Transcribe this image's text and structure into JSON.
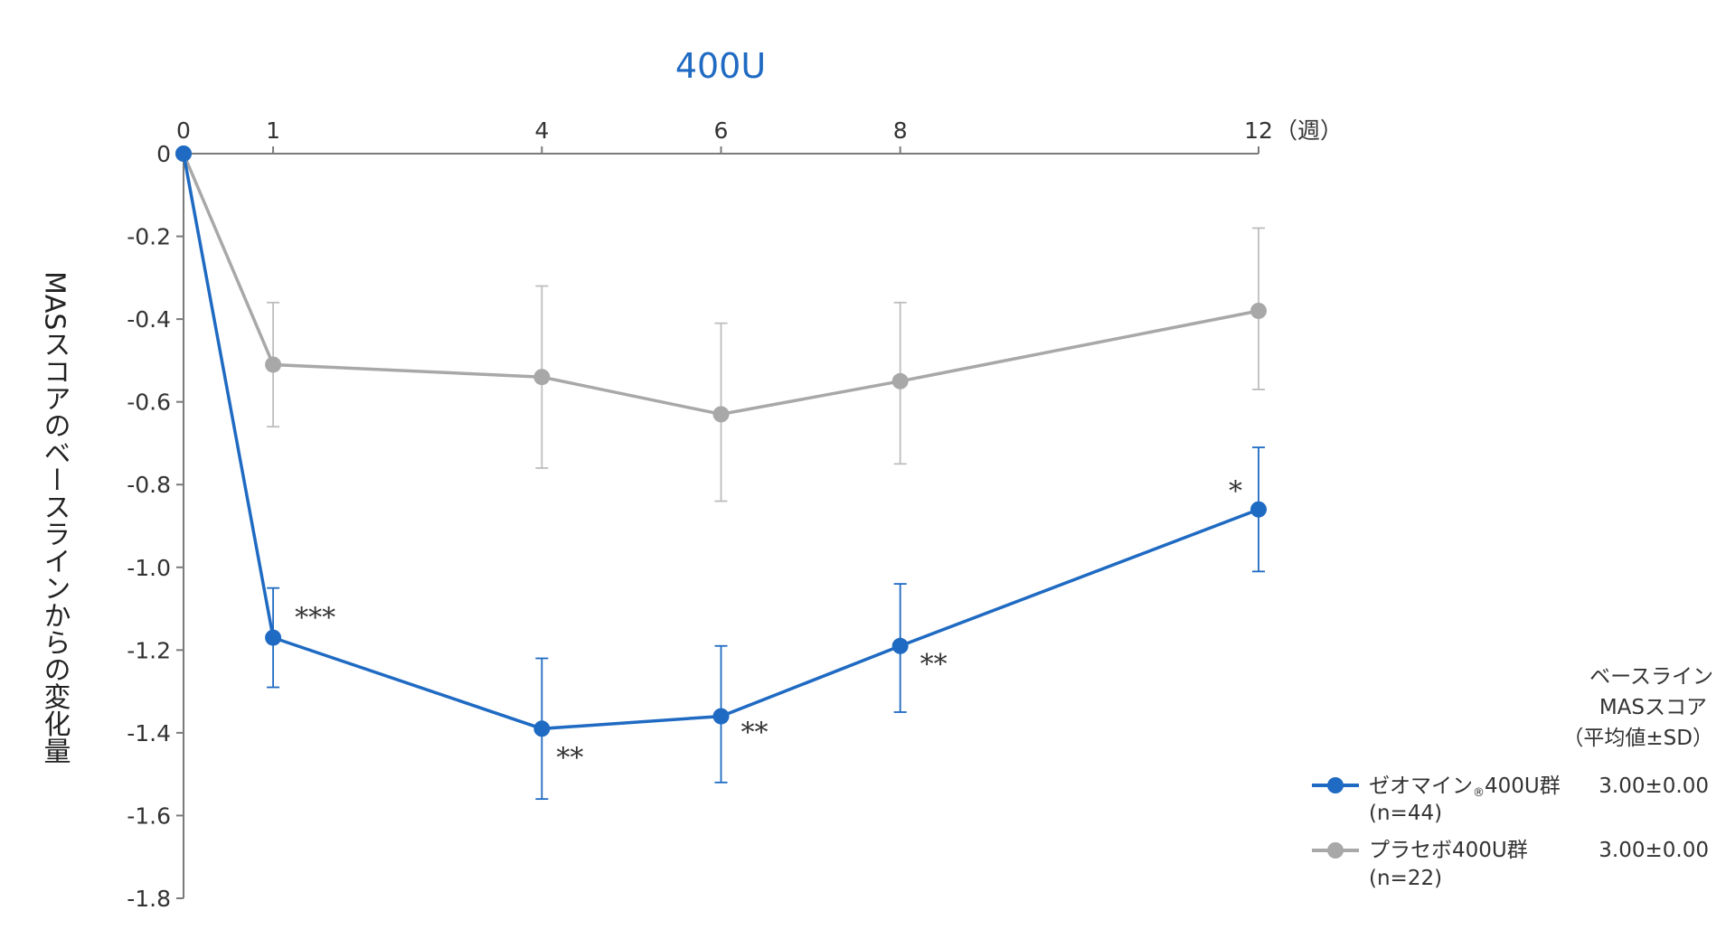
{
  "chart_data": {
    "type": "line",
    "title": "400U",
    "ylabel": "MASスコアのベースラインからの変化量",
    "x_unit": "（週）",
    "x_ticks": [
      0,
      1,
      4,
      6,
      8,
      12
    ],
    "y_ticks": [
      0,
      -0.2,
      -0.4,
      -0.6,
      -0.8,
      -1.0,
      -1.2,
      -1.4,
      -1.6,
      -1.8
    ],
    "y_tick_labels": [
      "0",
      "-0.2",
      "-0.4",
      "-0.6",
      "-0.8",
      "-1.0",
      "-1.2",
      "-1.4",
      "-1.6",
      "-1.8"
    ],
    "xlim": [
      0,
      12
    ],
    "ylim": [
      -1.8,
      0
    ],
    "grid": false,
    "legend_header": [
      "ベースライン",
      "MASスコア",
      "（平均値±SD）"
    ],
    "series": [
      {
        "name": "ゼオマイン®400U群",
        "legend_label": "ゼオマイン",
        "legend_label_mark": "®",
        "legend_label_rest": "400U群",
        "n_label": "(n=44)",
        "baseline_mas": "3.00±0.00",
        "color": "#1f6ac2",
        "points": [
          {
            "x": 0,
            "y": 0,
            "err_low": 0,
            "err_high": 0,
            "sig": ""
          },
          {
            "x": 1,
            "y": -1.17,
            "err_low": -1.29,
            "err_high": -1.05,
            "sig": "***"
          },
          {
            "x": 4,
            "y": -1.39,
            "err_low": -1.56,
            "err_high": -1.22,
            "sig": "**"
          },
          {
            "x": 6,
            "y": -1.36,
            "err_low": -1.52,
            "err_high": -1.19,
            "sig": "**"
          },
          {
            "x": 8,
            "y": -1.19,
            "err_low": -1.35,
            "err_high": -1.04,
            "sig": "**"
          },
          {
            "x": 12,
            "y": -0.86,
            "err_low": -1.01,
            "err_high": -0.71,
            "sig": "*"
          }
        ]
      },
      {
        "name": "プラセボ400U群",
        "legend_label": "プラセボ400U群",
        "n_label": "(n=22)",
        "baseline_mas": "3.00±0.00",
        "color": "#a8a8a8",
        "points": [
          {
            "x": 0,
            "y": 0,
            "err_low": 0,
            "err_high": 0
          },
          {
            "x": 1,
            "y": -0.51,
            "err_low": -0.66,
            "err_high": -0.36
          },
          {
            "x": 4,
            "y": -0.54,
            "err_low": -0.76,
            "err_high": -0.32
          },
          {
            "x": 6,
            "y": -0.63,
            "err_low": -0.84,
            "err_high": -0.41
          },
          {
            "x": 8,
            "y": -0.55,
            "err_low": -0.75,
            "err_high": -0.36
          },
          {
            "x": 12,
            "y": -0.38,
            "err_low": -0.57,
            "err_high": -0.18
          }
        ]
      }
    ]
  }
}
